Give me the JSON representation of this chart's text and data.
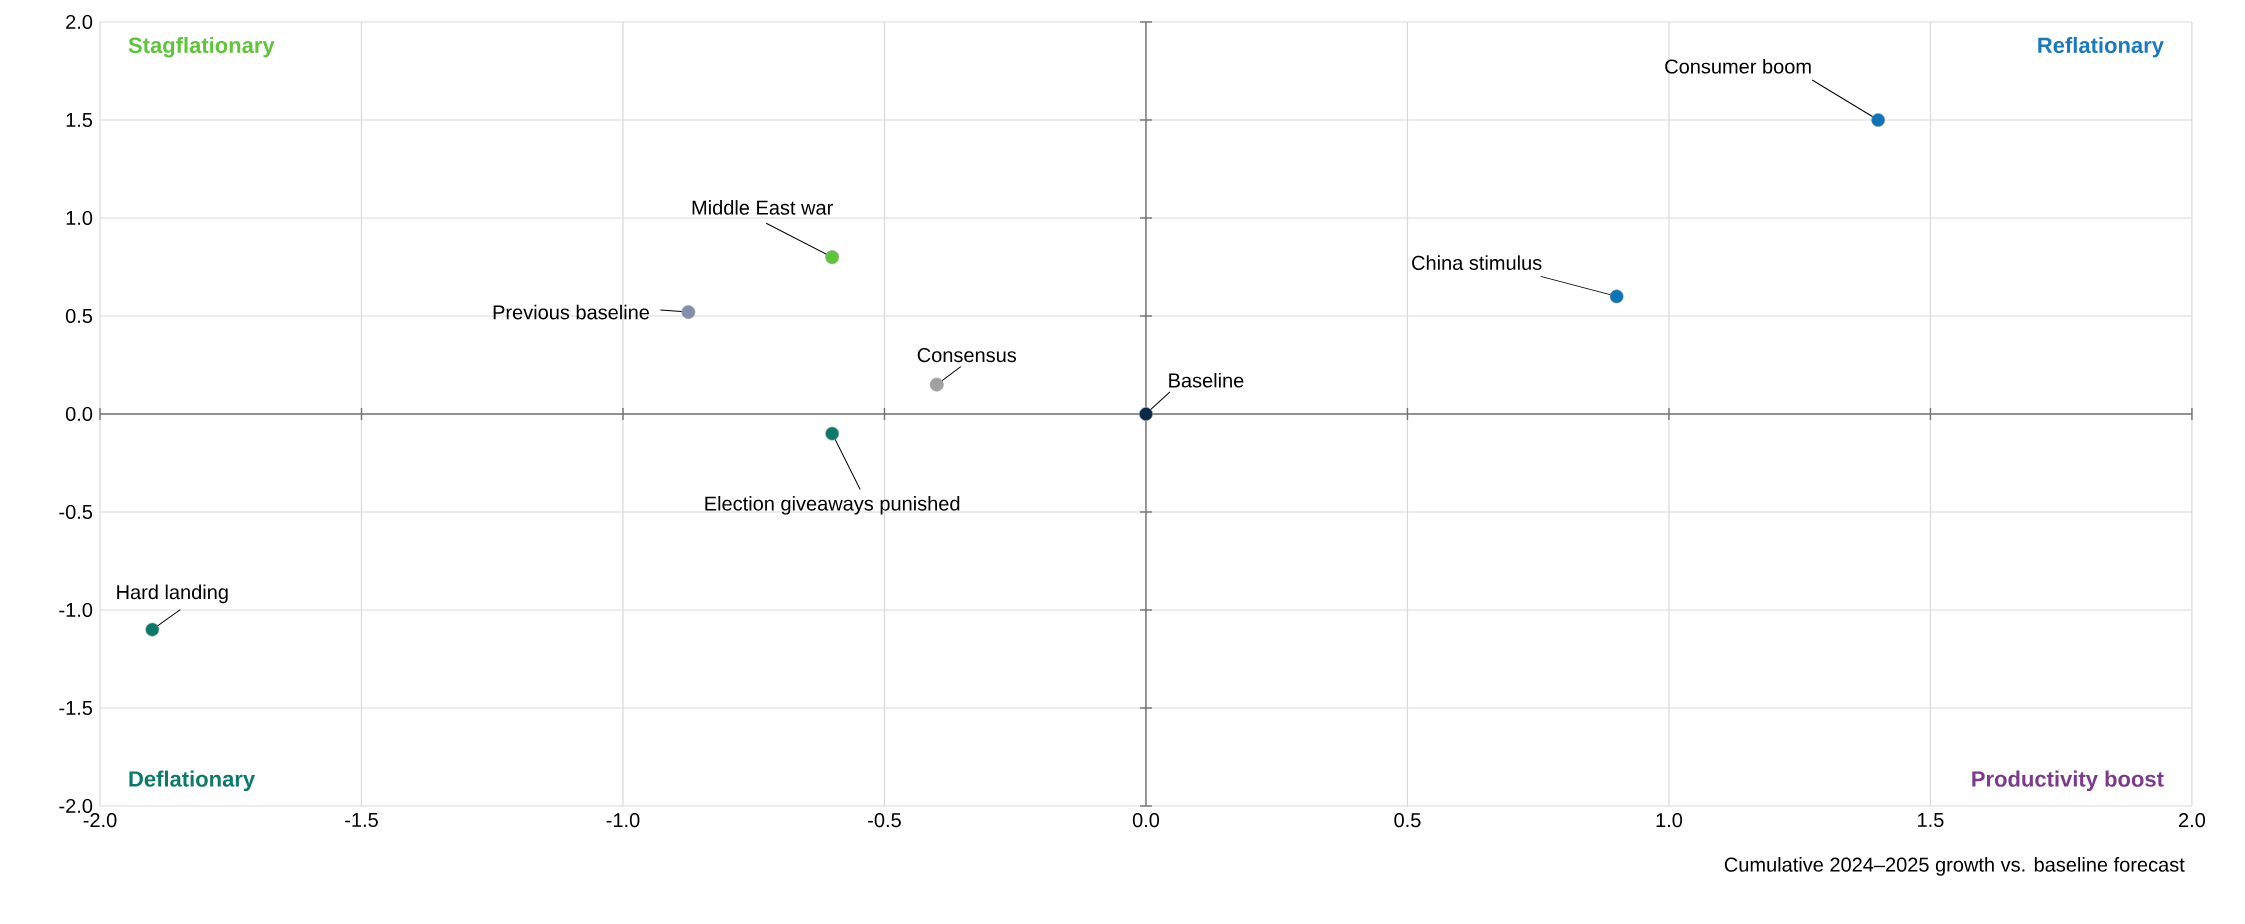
{
  "chart_data": {
    "type": "scatter",
    "xlabel": "Cumulative 2024–2025 growth vs. baseline forecast",
    "xlim": [
      -2,
      2
    ],
    "ylim": [
      -2,
      2
    ],
    "xticks": [
      {
        "value": -2,
        "label": "-2.0"
      },
      {
        "value": -1.5,
        "label": "-1.5"
      },
      {
        "value": -1,
        "label": "-1.0"
      },
      {
        "value": -0.5,
        "label": "-0.5"
      },
      {
        "value": 0,
        "label": "0.0"
      },
      {
        "value": 0.5,
        "label": "0.5"
      },
      {
        "value": 1,
        "label": "1.0"
      },
      {
        "value": 1.5,
        "label": "1.5"
      },
      {
        "value": 2,
        "label": "2.0"
      }
    ],
    "yticks": [
      {
        "value": -2,
        "label": "-2.0"
      },
      {
        "value": -1.5,
        "label": "-1.5"
      },
      {
        "value": -1,
        "label": "-1.0"
      },
      {
        "value": -0.5,
        "label": "-0.5"
      },
      {
        "value": 0,
        "label": "0.0"
      },
      {
        "value": 0.5,
        "label": "0.5"
      },
      {
        "value": 1,
        "label": "1.0"
      },
      {
        "value": 1.5,
        "label": "1.5"
      },
      {
        "value": 2,
        "label": "2.0"
      }
    ],
    "grid": true,
    "annotations": [
      "Stagflationary",
      "Reflationary",
      "Deflationary",
      "Productivity boost"
    ],
    "series": [
      {
        "name": "Consumer boom",
        "color": "#0a75b8",
        "x": [
          1.4
        ],
        "values": [
          1.5
        ]
      },
      {
        "name": "China stimulus",
        "color": "#0a75b8",
        "x": [
          0.9
        ],
        "values": [
          0.6
        ]
      },
      {
        "name": "Middle East war",
        "color": "#5ec43a",
        "x": [
          -0.6
        ],
        "values": [
          0.8
        ]
      },
      {
        "name": "Previous baseline",
        "color": "#8190b0",
        "x": [
          -0.875
        ],
        "values": [
          0.52
        ]
      },
      {
        "name": "Consensus",
        "color": "#a0a0a0",
        "x": [
          -0.4
        ],
        "values": [
          0.15
        ]
      },
      {
        "name": "Baseline",
        "color": "#0b2a4a",
        "x": [
          0
        ],
        "values": [
          0
        ]
      },
      {
        "name": "Election giveaways punished",
        "color": "#0b7a6a",
        "x": [
          -0.6
        ],
        "values": [
          -0.1
        ]
      },
      {
        "name": "Hard landing",
        "color": "#0b7a6a",
        "x": [
          -1.9
        ],
        "values": [
          -1.1
        ]
      }
    ]
  }
}
